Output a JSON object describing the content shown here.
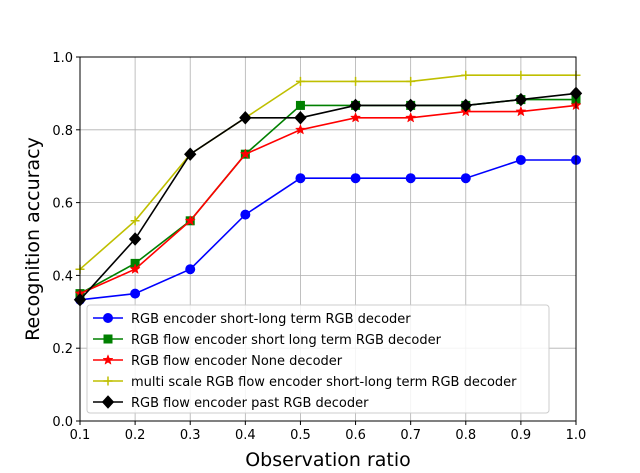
{
  "chart_data": {
    "type": "line",
    "title": "",
    "xlabel": "Observation ratio",
    "ylabel": "Recognition accuracy",
    "xlim": [
      0.1,
      1.0
    ],
    "ylim": [
      0.0,
      1.0
    ],
    "grid": true,
    "legend_position": "bottom-right",
    "x": [
      0.1,
      0.2,
      0.3,
      0.4,
      0.5,
      0.6,
      0.7,
      0.8,
      0.9,
      1.0
    ],
    "x_ticks": [
      "0.1",
      "0.2",
      "0.3",
      "0.4",
      "0.5",
      "0.6",
      "0.7",
      "0.8",
      "0.9",
      "1.0"
    ],
    "y_ticks": [
      "0.0",
      "0.2",
      "0.4",
      "0.6",
      "0.8",
      "1.0"
    ],
    "series": [
      {
        "name": "RGB encoder short-long term RGB decoder",
        "color": "#0000ff",
        "marker": "circle",
        "values": [
          0.333,
          0.35,
          0.417,
          0.567,
          0.667,
          0.667,
          0.667,
          0.667,
          0.717,
          0.717
        ]
      },
      {
        "name": "RGB flow encoder short long term RGB decoder",
        "color": "#008000",
        "marker": "square",
        "values": [
          0.35,
          0.433,
          0.55,
          0.733,
          0.867,
          0.867,
          0.867,
          0.867,
          0.883,
          0.883
        ]
      },
      {
        "name": "RGB flow encoder None decoder",
        "color": "#ff0000",
        "marker": "star",
        "values": [
          0.35,
          0.417,
          0.55,
          0.733,
          0.8,
          0.833,
          0.833,
          0.85,
          0.85,
          0.867
        ]
      },
      {
        "name": "multi scale RGB flow encoder short-long term RGB decoder",
        "color": "#bfbf00",
        "marker": "plus",
        "values": [
          0.417,
          0.55,
          0.733,
          0.833,
          0.933,
          0.933,
          0.933,
          0.95,
          0.95,
          0.95
        ]
      },
      {
        "name": "RGB flow encoder past RGB decoder",
        "color": "#000000",
        "marker": "diamond",
        "values": [
          0.333,
          0.5,
          0.733,
          0.833,
          0.833,
          0.867,
          0.867,
          0.867,
          0.883,
          0.9
        ]
      }
    ]
  }
}
